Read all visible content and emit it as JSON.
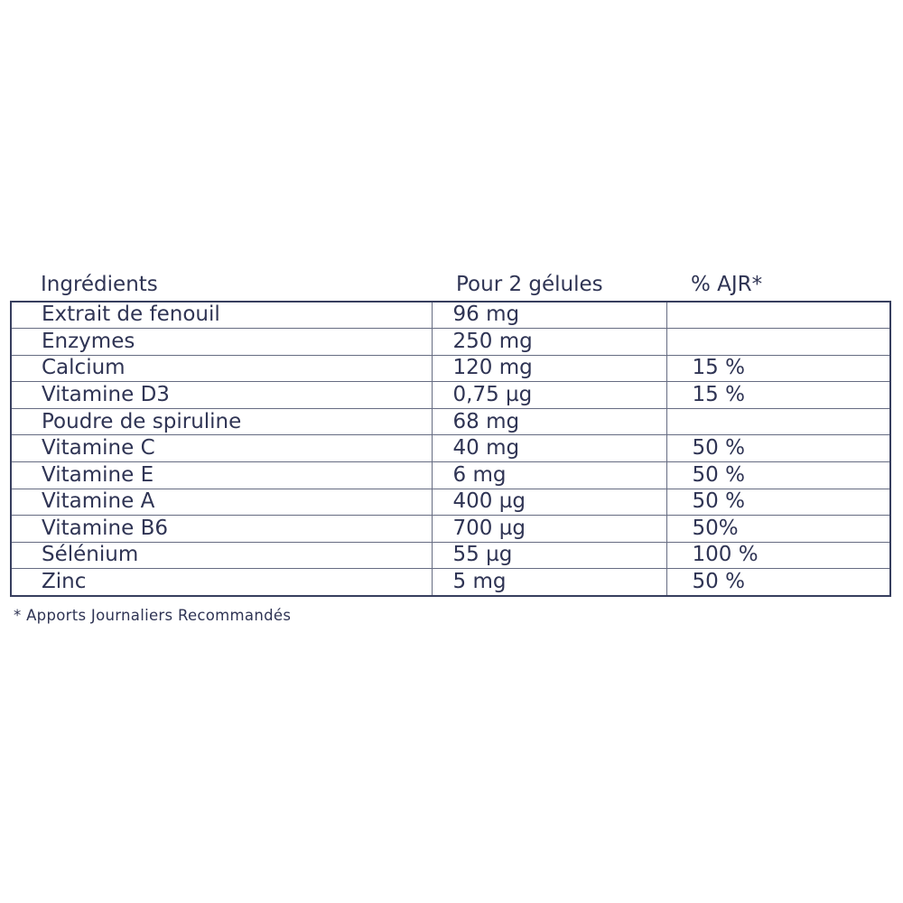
{
  "panel": {
    "headers": [
      "Ingrédients",
      "Pour 2 gélules",
      "% AJR*"
    ],
    "rows": [
      {
        "ingredient": "Extrait de fenouil",
        "amount": "96 mg",
        "ajr": ""
      },
      {
        "ingredient": "Enzymes",
        "amount": "250 mg",
        "ajr": ""
      },
      {
        "ingredient": "Calcium",
        "amount": "120 mg",
        "ajr": "15 %"
      },
      {
        "ingredient": "Vitamine D3",
        "amount": "0,75 µg",
        "ajr": "15 %"
      },
      {
        "ingredient": "Poudre de spiruline",
        "amount": "68 mg",
        "ajr": ""
      },
      {
        "ingredient": "Vitamine C",
        "amount": "40 mg",
        "ajr": "50 %"
      },
      {
        "ingredient": "Vitamine E",
        "amount": "6 mg",
        "ajr": "50 %"
      },
      {
        "ingredient": "Vitamine A",
        "amount": "400 µg",
        "ajr": "50 %"
      },
      {
        "ingredient": "Vitamine B6",
        "amount": "700 µg",
        "ajr": "50%"
      },
      {
        "ingredient": "Sélénium",
        "amount": "55 µg",
        "ajr": "100 %"
      },
      {
        "ingredient": "Zinc",
        "amount": "5 mg",
        "ajr": "50 %"
      }
    ],
    "footnote": "* Apports Journaliers Recommandés",
    "colors": {
      "text": "#2f3454",
      "outer_border": "#373e5e",
      "inner_border": "#666c82",
      "background": "#ffffff"
    }
  }
}
